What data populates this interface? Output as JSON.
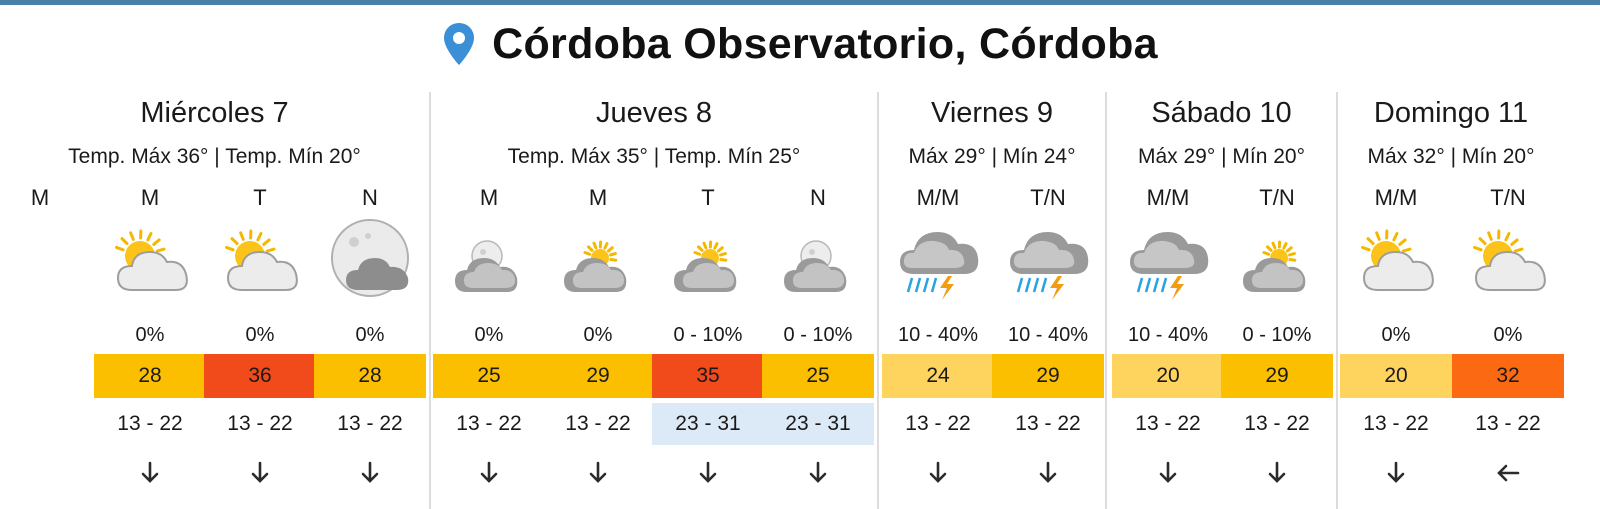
{
  "location": {
    "title": "Córdoba Observatorio, Córdoba",
    "icon": "location-pin-icon",
    "pin_color": "#3a8fd6"
  },
  "colors": {
    "temp_light": "#ffd45e",
    "temp_yellow": "#fbbf00",
    "temp_orange": "#fb6a12",
    "temp_red": "#f24b1b",
    "wind_highlight": "#dceaf7",
    "top_bar": "#4a7fa8"
  },
  "days": [
    {
      "name": "Miércoles 7",
      "temps": "Temp. Máx 36° | Temp. Mín 20°",
      "extra_label": "M",
      "periods": [
        {
          "label": "M",
          "icon": "sun-cloud-icon",
          "rain": "0%",
          "temp": "28",
          "temp_color": "#fbbf00",
          "wind": "13 - 22",
          "wind_color": "",
          "dir": "arrow-down-icon"
        },
        {
          "label": "T",
          "icon": "sun-cloud-icon",
          "rain": "0%",
          "temp": "36",
          "temp_color": "#f24b1b",
          "wind": "13 - 22",
          "wind_color": "",
          "dir": "arrow-down-icon"
        },
        {
          "label": "N",
          "icon": "moon-cloud-icon",
          "rain": "0%",
          "temp": "28",
          "temp_color": "#fbbf00",
          "wind": "13 - 22",
          "wind_color": "",
          "dir": "arrow-down-icon"
        }
      ]
    },
    {
      "name": "Jueves 8",
      "temps": "Temp. Máx 35° | Temp. Mín 25°",
      "periods": [
        {
          "label": "M",
          "icon": "moon-cloudy-icon",
          "rain": "0%",
          "temp": "25",
          "temp_color": "#fbbf00",
          "wind": "13 - 22",
          "wind_color": "",
          "dir": "arrow-down-icon"
        },
        {
          "label": "M",
          "icon": "sun-cloudy-icon",
          "rain": "0%",
          "temp": "29",
          "temp_color": "#fbbf00",
          "wind": "13 - 22",
          "wind_color": "",
          "dir": "arrow-down-icon"
        },
        {
          "label": "T",
          "icon": "sun-cloudy-icon",
          "rain": "0 - 10%",
          "temp": "35",
          "temp_color": "#f24b1b",
          "wind": "23 - 31",
          "wind_color": "#dceaf7",
          "dir": "arrow-down-icon"
        },
        {
          "label": "N",
          "icon": "moon-cloudy-icon",
          "rain": "0 - 10%",
          "temp": "25",
          "temp_color": "#fbbf00",
          "wind": "23 - 31",
          "wind_color": "#dceaf7",
          "dir": "arrow-down-icon"
        }
      ]
    },
    {
      "name": "Viernes 9",
      "temps": "Máx 29° | Mín 24°",
      "periods": [
        {
          "label": "M/M",
          "icon": "storm-icon",
          "rain": "10 - 40%",
          "temp": "24",
          "temp_color": "#ffd45e",
          "wind": "13 - 22",
          "wind_color": "",
          "dir": "arrow-down-icon"
        },
        {
          "label": "T/N",
          "icon": "storm-icon",
          "rain": "10 - 40%",
          "temp": "29",
          "temp_color": "#fbbf00",
          "wind": "13 - 22",
          "wind_color": "",
          "dir": "arrow-down-icon"
        }
      ]
    },
    {
      "name": "Sábado 10",
      "temps": "Máx 29° | Mín 20°",
      "periods": [
        {
          "label": "M/M",
          "icon": "storm-icon",
          "rain": "10 - 40%",
          "temp": "20",
          "temp_color": "#ffd45e",
          "wind": "13 - 22",
          "wind_color": "",
          "dir": "arrow-down-icon"
        },
        {
          "label": "T/N",
          "icon": "sun-cloudy-icon",
          "rain": "0 - 10%",
          "temp": "29",
          "temp_color": "#fbbf00",
          "wind": "13 - 22",
          "wind_color": "",
          "dir": "arrow-down-icon"
        }
      ]
    },
    {
      "name": "Domingo 11",
      "temps": "Máx 32° | Mín 20°",
      "periods": [
        {
          "label": "M/M",
          "icon": "sun-cloud-icon",
          "rain": "0%",
          "temp": "20",
          "temp_color": "#ffd45e",
          "wind": "13 - 22",
          "wind_color": "",
          "dir": "arrow-down-icon"
        },
        {
          "label": "T/N",
          "icon": "sun-cloud-icon",
          "rain": "0%",
          "temp": "32",
          "temp_color": "#fb6a12",
          "wind": "13 - 22",
          "wind_color": "",
          "dir": "arrow-left-icon"
        }
      ]
    }
  ]
}
